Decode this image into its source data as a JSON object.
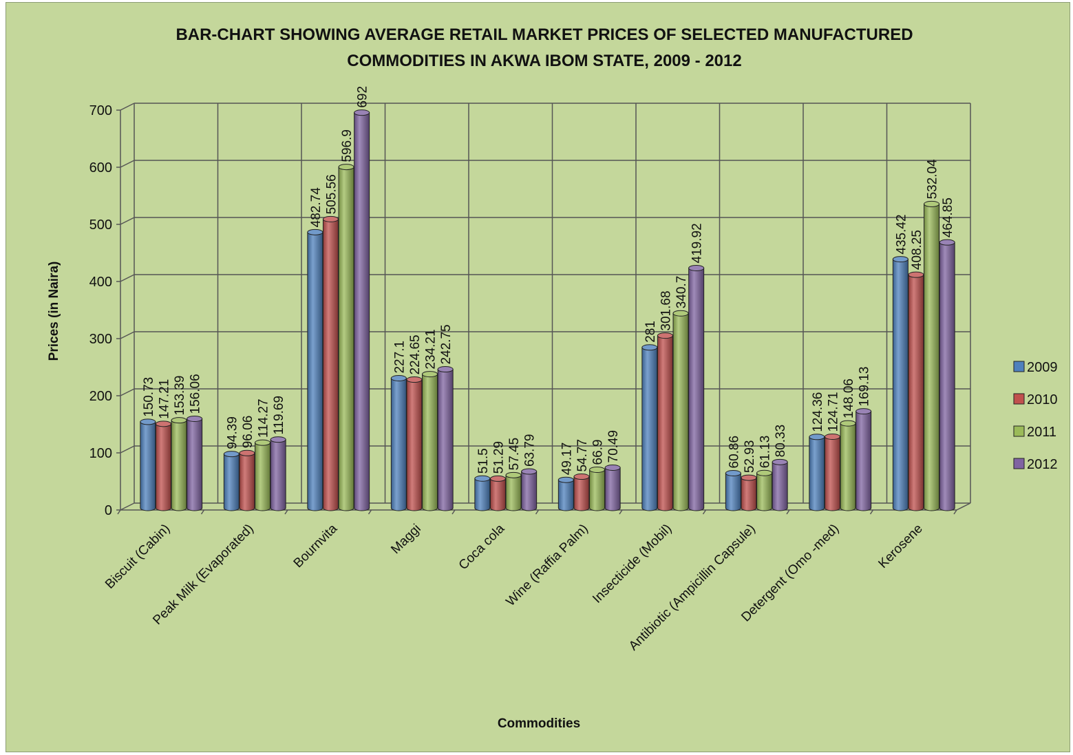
{
  "chart_data": {
    "type": "bar",
    "title_lines": [
      "BAR-CHART SHOWING AVERAGE RETAIL MARKET PRICES OF SELECTED MANUFACTURED",
      "COMMODITIES IN AKWA IBOM STATE, 2009 - 2012"
    ],
    "xlabel": "Commodities",
    "ylabel": "Prices (in Naira)",
    "ylim": [
      0,
      700
    ],
    "yticks": [
      0,
      100,
      200,
      300,
      400,
      500,
      600,
      700
    ],
    "grid": true,
    "legend_position": "right",
    "categories": [
      "Biscuit (Cabin)",
      "Peak Milk (Evaporated)",
      "Bournvita",
      "Maggi",
      "Coca cola",
      "Wine (Raffia Palm)",
      "Insecticide (Mobil)",
      "Antibiotic (Ampicillin Capsule)",
      "Detergent (Omo -med)",
      "Kerosene"
    ],
    "series": [
      {
        "name": "2009",
        "color": "#4f81bd",
        "values": [
          150.73,
          94.39,
          482.74,
          227.1,
          51.5,
          49.17,
          281,
          60.86,
          124.36,
          435.42
        ]
      },
      {
        "name": "2010",
        "color": "#c0504d",
        "values": [
          147.21,
          96.06,
          505.56,
          224.65,
          51.29,
          54.77,
          301.68,
          52.93,
          124.71,
          408.25
        ]
      },
      {
        "name": "2011",
        "color": "#9bbb59",
        "values": [
          153.39,
          114.27,
          596.9,
          234.21,
          57.45,
          66.9,
          340.7,
          61.13,
          148.06,
          532.04
        ]
      },
      {
        "name": "2012",
        "color": "#8064a2",
        "values": [
          156.06,
          119.69,
          692,
          242.75,
          63.79,
          70.49,
          419.92,
          80.33,
          169.13,
          464.85
        ]
      }
    ]
  }
}
